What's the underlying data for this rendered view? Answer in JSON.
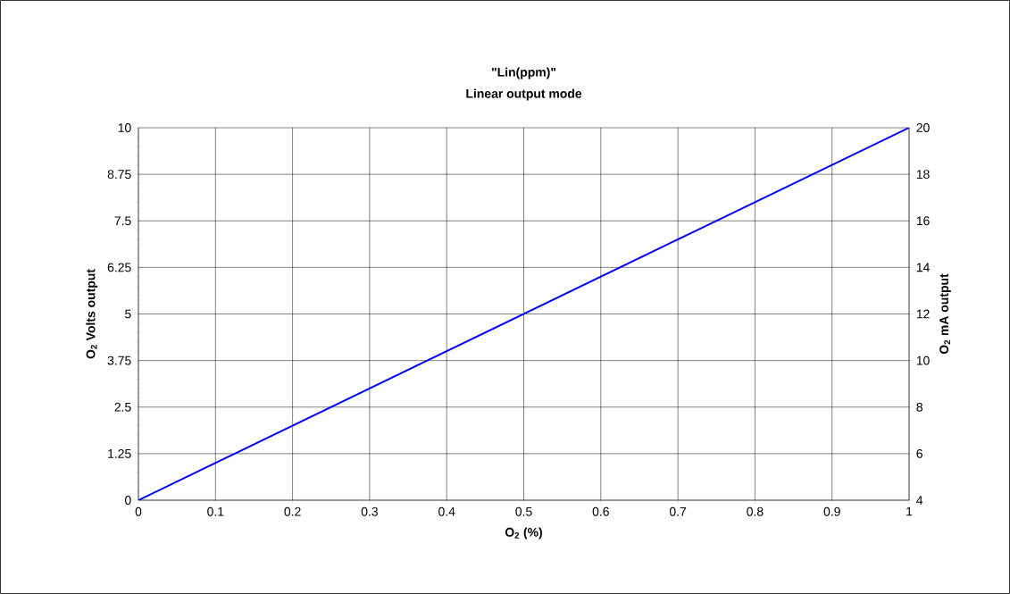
{
  "chart_data": {
    "type": "line",
    "title": "\"Lin(ppm)\"",
    "subtitle": "Linear output mode",
    "xlabel": "O$_{2}$ (%)",
    "ylabel": "O$_{2}$ Volts output",
    "y2label": "O$_{2}$ mA output",
    "series": [
      {
        "color": "#0000ff",
        "x": [
          0,
          1
        ],
        "values": [
          0,
          10
        ]
      }
    ],
    "xlim": [
      0,
      1
    ],
    "xticks": [
      0,
      0.1,
      0.2,
      0.3,
      0.4,
      0.5,
      0.6,
      0.7,
      0.8,
      0.9,
      1
    ],
    "ylim": [
      0,
      10
    ],
    "yticks": [
      0,
      1.25,
      2.5,
      3.75,
      5,
      6.25,
      7.5,
      8.75,
      10
    ],
    "y2lim": [
      4,
      20
    ],
    "y2ticks": [
      4,
      6,
      8,
      10,
      12,
      14,
      16,
      18,
      20
    ],
    "grid": true,
    "marker": "none",
    "line_style": "solid"
  }
}
